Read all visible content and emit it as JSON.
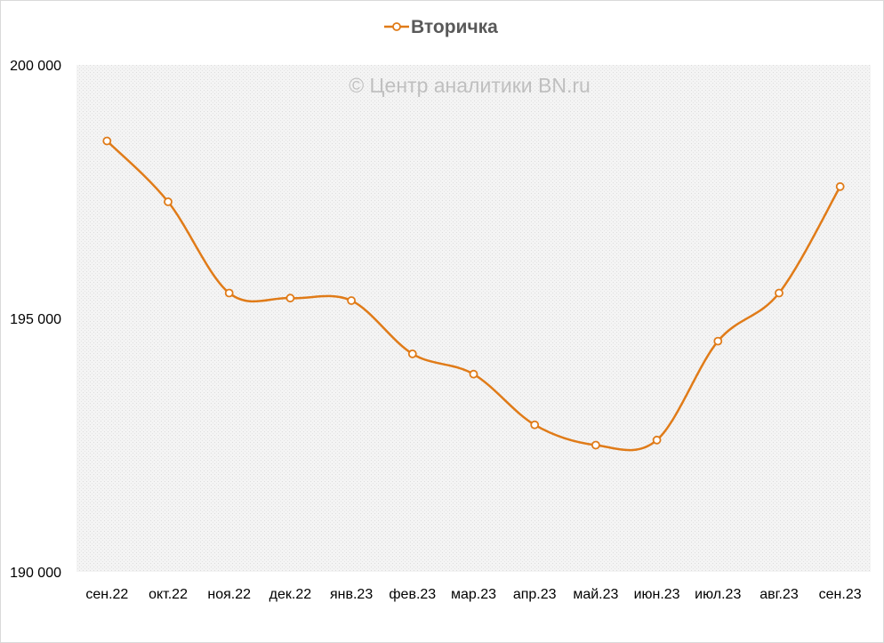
{
  "legend": {
    "series_name": "Вторичка"
  },
  "watermark": "© Центр аналитики BN.ru",
  "colors": {
    "series": "#E07B18",
    "marker_fill": "#FFFFFF",
    "plot_bg": "#F2F2F2",
    "axis_label": "#000000"
  },
  "chart_data": {
    "type": "line",
    "title": "",
    "xlabel": "",
    "ylabel": "",
    "smooth": true,
    "markers": "hollow-circle",
    "grid": false,
    "legend_position": "top-center",
    "ylim": [
      190000,
      200000
    ],
    "y_ticks": [
      190000,
      195000,
      200000
    ],
    "y_tick_labels": [
      "190 000",
      "195 000",
      "200 000"
    ],
    "categories": [
      "сен.22",
      "окт.22",
      "ноя.22",
      "дек.22",
      "янв.23",
      "фев.23",
      "мар.23",
      "апр.23",
      "май.23",
      "июн.23",
      "июл.23",
      "авг.23",
      "сен.23"
    ],
    "series": [
      {
        "name": "Вторичка",
        "values": [
          198500,
          197300,
          195500,
          195400,
          195350,
          194300,
          193900,
          192900,
          192500,
          192600,
          194550,
          195500,
          197600
        ]
      }
    ]
  }
}
